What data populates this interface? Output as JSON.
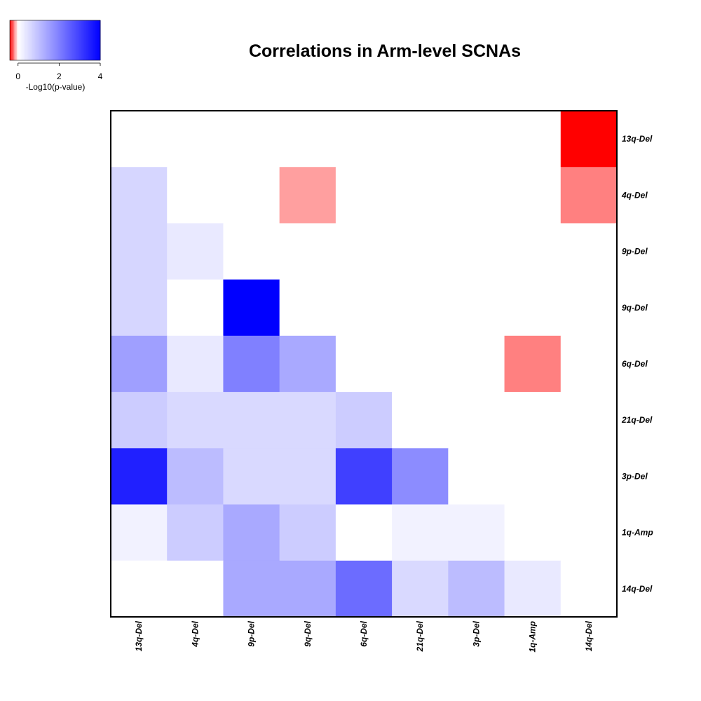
{
  "chart_data": {
    "type": "heatmap",
    "title": "Correlations in Arm-level SCNAs",
    "rows": [
      "13q-Del",
      "4q-Del",
      "9p-Del",
      "9q-Del",
      "6q-Del",
      "21q-Del",
      "3p-Del",
      "1q-Amp",
      "14q-Del"
    ],
    "columns": [
      "13q-Del",
      "4q-Del",
      "9p-Del",
      "9q-Del",
      "6q-Del",
      "21q-Del",
      "3p-Del",
      "1q-Amp",
      "14q-Del"
    ],
    "values": [
      [
        0,
        0,
        0,
        0,
        0,
        0,
        0,
        0,
        -0.5
      ],
      [
        0.65,
        0,
        0,
        -0.15,
        0,
        0,
        0,
        0,
        -0.2
      ],
      [
        0.65,
        0.35,
        0,
        0,
        0,
        0,
        0,
        0,
        0
      ],
      [
        0.65,
        0,
        4.0,
        0,
        0,
        0,
        0,
        0,
        0
      ],
      [
        1.5,
        0.35,
        2.0,
        1.35,
        0,
        0,
        0,
        -0.2,
        0
      ],
      [
        0.8,
        0.6,
        0.6,
        0.6,
        0.8,
        0,
        0,
        0,
        0
      ],
      [
        3.5,
        1.05,
        0.6,
        0.6,
        3.0,
        1.8,
        0,
        0,
        0
      ],
      [
        0.2,
        0.8,
        1.35,
        0.8,
        0,
        0.2,
        0.2,
        0,
        0
      ],
      [
        0,
        0,
        1.35,
        1.35,
        2.3,
        0.6,
        1.05,
        0.35,
        0
      ]
    ],
    "colorscale": {
      "min": -0.4,
      "max": 4,
      "neg_color": "#ff0000",
      "zero_color": "#ffffff",
      "pos_color": "#0000ff"
    },
    "legend": {
      "label": "-Log10(p-value)",
      "ticks": [
        0,
        2,
        4
      ],
      "range": [
        -0.4,
        4
      ],
      "placement": "top-left"
    }
  }
}
